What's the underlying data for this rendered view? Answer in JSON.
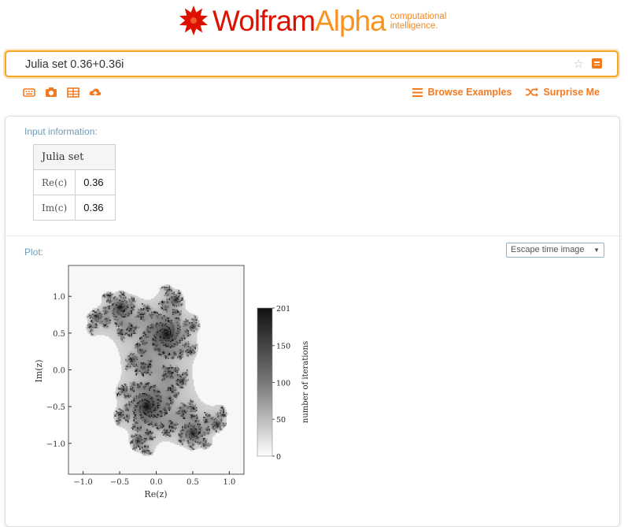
{
  "brand": {
    "word1": "Wolfram",
    "word2": "Alpha",
    "tagline_line1": "computational",
    "tagline_line2": "intelligence."
  },
  "search": {
    "value": "Julia set 0.36+0.36i"
  },
  "toolbar": {
    "icons": [
      "keyboard-icon",
      "camera-icon",
      "table-icon",
      "cloud-upload-icon"
    ],
    "browse_label": "Browse Examples",
    "surprise_label": "Surprise Me"
  },
  "pods": {
    "input": {
      "title": "Input information:",
      "header": "Julia set",
      "rows": [
        {
          "label": "Re(c)",
          "value": "0.36"
        },
        {
          "label": "Im(c)",
          "value": "0.36"
        }
      ]
    },
    "plot": {
      "title": "Plot:",
      "select_value": "Escape time image"
    }
  },
  "plot": {
    "x_ticks": [
      "−1.0",
      "−0.5",
      "0.0",
      "0.5",
      "1.0"
    ],
    "y_ticks": [
      "1.0",
      "0.5",
      "0.0",
      "−0.5",
      "−1.0"
    ],
    "x_label": "Re(z)",
    "y_label": "Im(z)",
    "colorbar_ticks": [
      "201",
      "150",
      "100",
      "50",
      "0"
    ],
    "colorbar_label": "number of iterations",
    "colors": {
      "high": "#111111",
      "low": "#ffffff"
    }
  },
  "chart_data": {
    "type": "heatmap",
    "title": "",
    "xlabel": "Re(z)",
    "ylabel": "Im(z)",
    "xlim": [
      -1.2,
      1.2
    ],
    "ylim": [
      -1.42,
      1.42
    ],
    "c": [
      0.36,
      0.36
    ],
    "value_range": [
      0,
      201
    ],
    "colorbar_label": "number of iterations"
  }
}
